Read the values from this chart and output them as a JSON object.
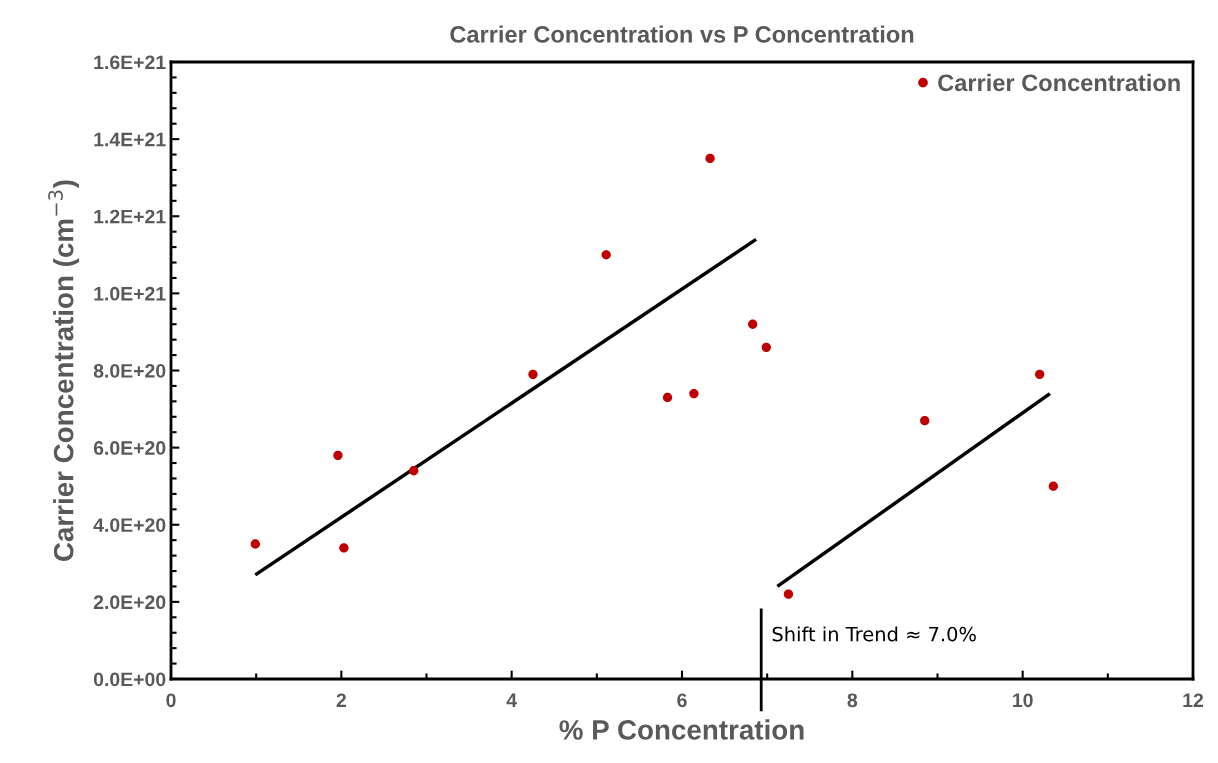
{
  "chart_data": {
    "type": "scatter",
    "title": "Carrier Concentration vs P Concentration",
    "xlabel": "% P Concentration",
    "ylabel": "Carrier Concentration (cm$^{−3}$)",
    "series": [
      {
        "name": "Carrier Concentration",
        "marker": "circle",
        "color": "#c00000",
        "x": [
          0.99,
          1.96,
          2.03,
          2.85,
          4.25,
          5.11,
          5.83,
          6.14,
          6.33,
          6.83,
          6.99,
          7.25,
          8.85,
          10.2,
          10.36
        ],
        "values": [
          3.5e+20,
          5.8e+20,
          3.4e+20,
          5.4e+20,
          7.9e+20,
          1.1e+21,
          7.3e+20,
          7.4e+20,
          1.35e+21,
          9.2e+20,
          8.6e+20,
          2.2e+20,
          6.7e+20,
          7.9e+20,
          5e+20
        ]
      },
      {
        "type": "line",
        "marker": "none",
        "color": "#000000",
        "x": [
          0.99,
          6.87
        ],
        "values": [
          2.7e+20,
          1.14e+21
        ]
      },
      {
        "type": "line",
        "marker": "none",
        "color": "#000000",
        "x": [
          7.12,
          10.32
        ],
        "values": [
          2.4e+20,
          7.4e+20
        ]
      }
    ],
    "ref_lines": [
      {
        "axis": "x",
        "value": 6.93,
        "label": "Shift in Trend ≈ 7.0%",
        "color": "#000000"
      }
    ],
    "xlim": [
      0,
      12
    ],
    "xticks": [
      0,
      2,
      4,
      6,
      8,
      10,
      12
    ],
    "ylim": [
      0,
      1.6e+21
    ],
    "yticks": [
      {
        "value": 0,
        "label": "0.0E+00"
      },
      {
        "value": 2e+20,
        "label": "2.0E+20"
      },
      {
        "value": 4e+20,
        "label": "4.0E+20"
      },
      {
        "value": 6e+20,
        "label": "6.0E+20"
      },
      {
        "value": 8e+20,
        "label": "8.0E+20"
      },
      {
        "value": 1e+21,
        "label": "1.0E+21"
      },
      {
        "value": 1.2e+21,
        "label": "1.2E+21"
      },
      {
        "value": 1.4e+21,
        "label": "1.4E+21"
      },
      {
        "value": 1.6e+21,
        "label": "1.6E+21"
      }
    ],
    "grid": false,
    "legend": "top right",
    "line_style": "solid"
  }
}
